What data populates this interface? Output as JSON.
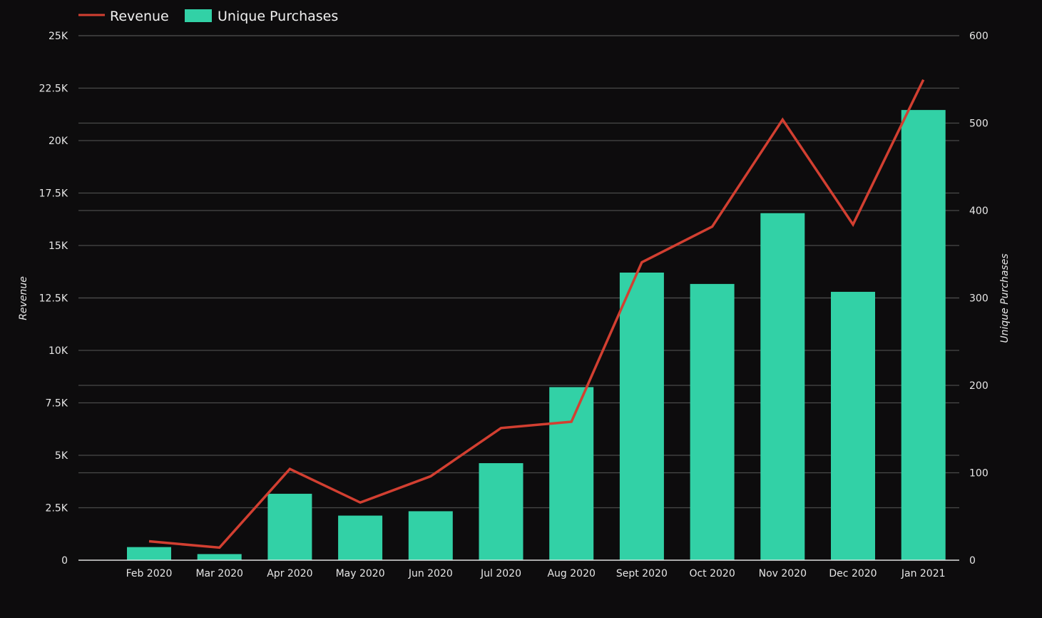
{
  "chart_data": {
    "type": "bar",
    "combo": "bar+line",
    "categories": [
      "Feb 2020",
      "Mar 2020",
      "Apr 2020",
      "May 2020",
      "Jun 2020",
      "Jul 2020",
      "Aug 2020",
      "Sept 2020",
      "Oct 2020",
      "Nov 2020",
      "Dec 2020",
      "Jan 2021"
    ],
    "series": [
      {
        "name": "Revenue",
        "type": "line",
        "axis": "left",
        "color": "#d23f31",
        "values": [
          900,
          600,
          4350,
          2750,
          4000,
          6300,
          6600,
          14200,
          15900,
          21000,
          16000,
          22900
        ]
      },
      {
        "name": "Unique Purchases",
        "type": "bar",
        "axis": "right",
        "color": "#32d1a6",
        "values": [
          15,
          7,
          76,
          51,
          56,
          111,
          198,
          329,
          316,
          397,
          307,
          515
        ]
      }
    ],
    "left_axis": {
      "label": "Revenue",
      "range": [
        0,
        25000
      ],
      "ticks": [
        0,
        2500,
        5000,
        7500,
        10000,
        12500,
        15000,
        17500,
        20000,
        22500,
        25000
      ],
      "tick_labels": [
        "0",
        "2.5K",
        "5K",
        "7.5K",
        "10K",
        "12.5K",
        "15K",
        "17.5K",
        "20K",
        "22.5K",
        "25K"
      ]
    },
    "right_axis": {
      "label": "Unique Purchases",
      "range": [
        0,
        600
      ],
      "ticks": [
        0,
        100,
        200,
        300,
        400,
        500,
        600
      ],
      "tick_labels": [
        "0",
        "100",
        "200",
        "300",
        "400",
        "500",
        "600"
      ]
    },
    "legend": {
      "position": "top-left",
      "entries": [
        "Revenue",
        "Unique Purchases"
      ]
    },
    "grid": true,
    "background": "#0d0c0d",
    "grid_color": "#4a4a4a"
  }
}
